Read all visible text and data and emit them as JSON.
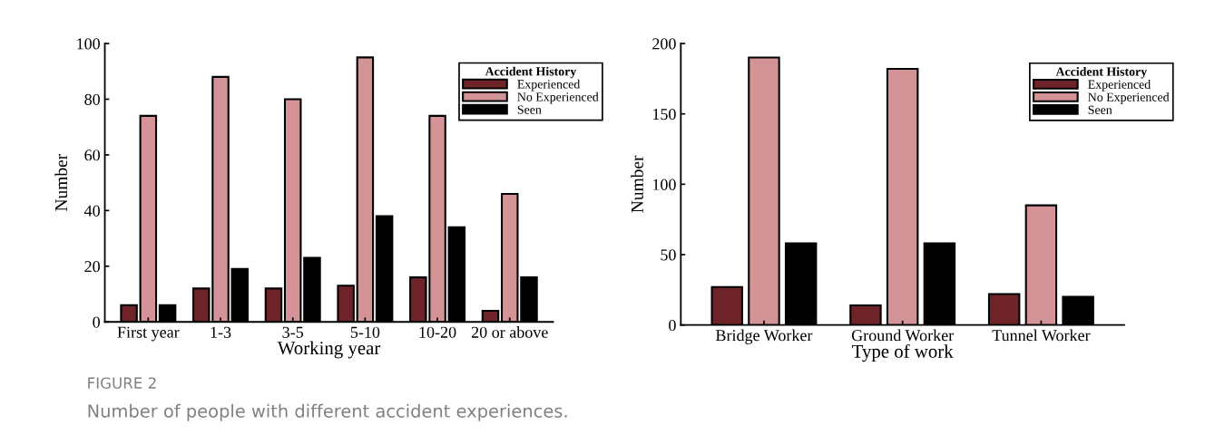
{
  "chart_data": [
    {
      "type": "bar",
      "xlabel": "Working year",
      "ylabel": "Number",
      "legend_title": "Accident History",
      "legend": "top right",
      "categories": [
        "First year",
        "1-3",
        "3-5",
        "5-10",
        "10-20",
        "20 or above"
      ],
      "ylim": [
        0,
        100
      ],
      "yticks": [
        0,
        20,
        40,
        60,
        80,
        100
      ],
      "grid": false,
      "series": [
        {
          "name": "Experienced",
          "color": "#6e2328",
          "values": [
            6,
            12,
            12,
            13,
            16,
            4
          ]
        },
        {
          "name": "No Experienced",
          "color": "#d49497",
          "values": [
            74,
            88,
            80,
            95,
            74,
            46
          ]
        },
        {
          "name": "Seen",
          "color": "#000000",
          "values": [
            6,
            19,
            23,
            38,
            34,
            16
          ]
        }
      ],
      "annotations": [
        "FIGURE 2",
        "Number of people with different accident experiences."
      ]
    },
    {
      "type": "bar",
      "xlabel": "Type of work",
      "ylabel": "Number",
      "legend_title": "Accident History",
      "legend": "top right",
      "categories": [
        "Bridge Worker",
        "Ground Worker",
        "Tunnel Worker"
      ],
      "ylim": [
        0,
        200
      ],
      "yticks": [
        0,
        50,
        100,
        150,
        200
      ],
      "grid": false,
      "series": [
        {
          "name": "Experienced",
          "color": "#6e2328",
          "values": [
            27,
            14,
            22
          ]
        },
        {
          "name": "No Experienced",
          "color": "#d49497",
          "values": [
            190,
            182,
            85
          ]
        },
        {
          "name": "Seen",
          "color": "#000000",
          "values": [
            58,
            58,
            20
          ]
        }
      ]
    }
  ]
}
